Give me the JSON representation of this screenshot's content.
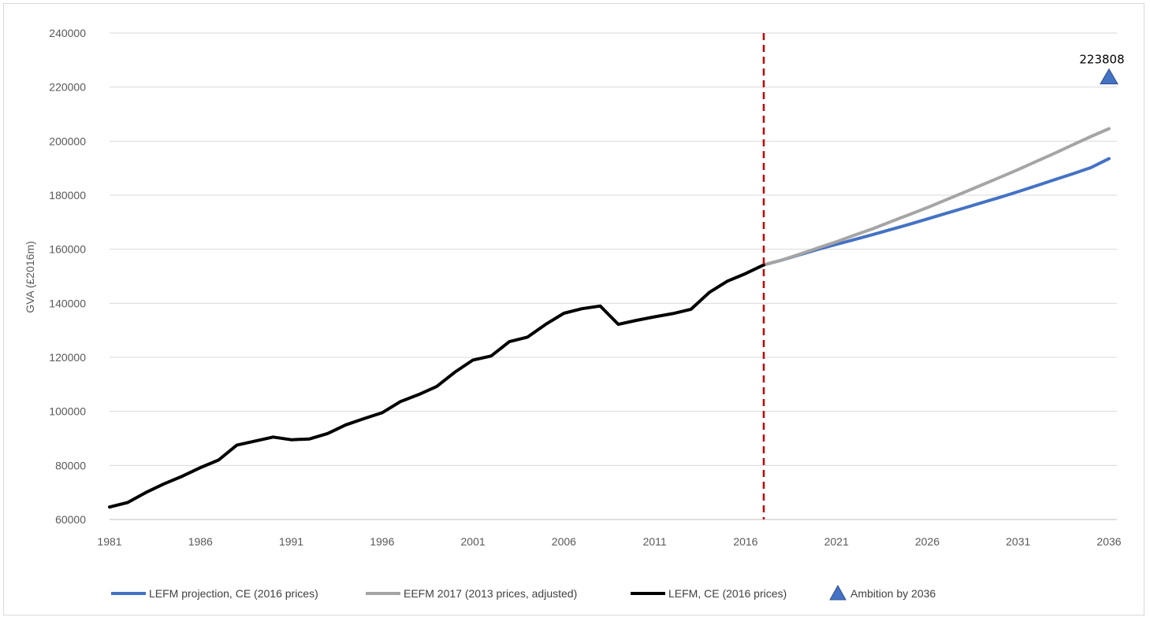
{
  "chart_data": {
    "type": "line",
    "title": "",
    "xlabel": "",
    "ylabel": "GVA (£2016m)",
    "xlim": [
      1981,
      2036
    ],
    "ylim": [
      60000,
      240000
    ],
    "x_ticks": [
      "1981",
      "1986",
      "1991",
      "1996",
      "2001",
      "2006",
      "2011",
      "2016",
      "2021",
      "2026",
      "2031",
      "2036"
    ],
    "y_ticks": [
      "60000",
      "80000",
      "100000",
      "120000",
      "140000",
      "160000",
      "180000",
      "200000",
      "220000",
      "240000"
    ],
    "grid": "horizontal",
    "legend_position": "bottom",
    "divider_year": 2017,
    "series": [
      {
        "name": "LEFM projection, CE (2016 prices)",
        "color": "#4472c4",
        "x": [
          2017,
          2018,
          2019,
          2020,
          2021,
          2022,
          2023,
          2024,
          2025,
          2026,
          2027,
          2028,
          2029,
          2030,
          2031,
          2032,
          2033,
          2034,
          2035,
          2036
        ],
        "y": [
          154200,
          156000,
          158000,
          160000,
          161800,
          163600,
          165400,
          167300,
          169200,
          171200,
          173200,
          175200,
          177200,
          179200,
          181300,
          183500,
          185700,
          187900,
          190200,
          193500
        ]
      },
      {
        "name": "EEFM 2017 (2013 prices, adjusted)",
        "color": "#a5a5a5",
        "x": [
          2017,
          2018,
          2019,
          2020,
          2021,
          2022,
          2023,
          2024,
          2025,
          2026,
          2027,
          2028,
          2029,
          2030,
          2031,
          2032,
          2033,
          2034,
          2035,
          2036
        ],
        "y": [
          154200,
          156000,
          158200,
          160500,
          162800,
          165200,
          167600,
          170200,
          172800,
          175400,
          178200,
          181000,
          183800,
          186600,
          189500,
          192500,
          195500,
          198600,
          201700,
          204600
        ]
      },
      {
        "name": "LEFM, CE (2016 prices)",
        "color": "#000000",
        "x": [
          1981,
          1982,
          1983,
          1984,
          1985,
          1986,
          1987,
          1988,
          1989,
          1990,
          1991,
          1992,
          1993,
          1994,
          1995,
          1996,
          1997,
          1998,
          1999,
          2000,
          2001,
          2002,
          2003,
          2004,
          2005,
          2006,
          2007,
          2008,
          2009,
          2010,
          2011,
          2012,
          2013,
          2014,
          2015,
          2016,
          2017
        ],
        "y": [
          64600,
          66300,
          70000,
          73200,
          76000,
          79200,
          82000,
          87500,
          89000,
          90500,
          89500,
          89800,
          91800,
          95000,
          97300,
          99500,
          103600,
          106200,
          109200,
          114500,
          119000,
          120500,
          125800,
          127500,
          132200,
          136300,
          138000,
          139000,
          132200,
          133700,
          135000,
          136200,
          137800,
          144000,
          148200,
          151000,
          154200
        ]
      }
    ],
    "markers": [
      {
        "name": "Ambition by 2036",
        "color": "#4472c4",
        "x": 2036,
        "y": 223808,
        "label": "223808",
        "shape": "triangle"
      }
    ]
  }
}
